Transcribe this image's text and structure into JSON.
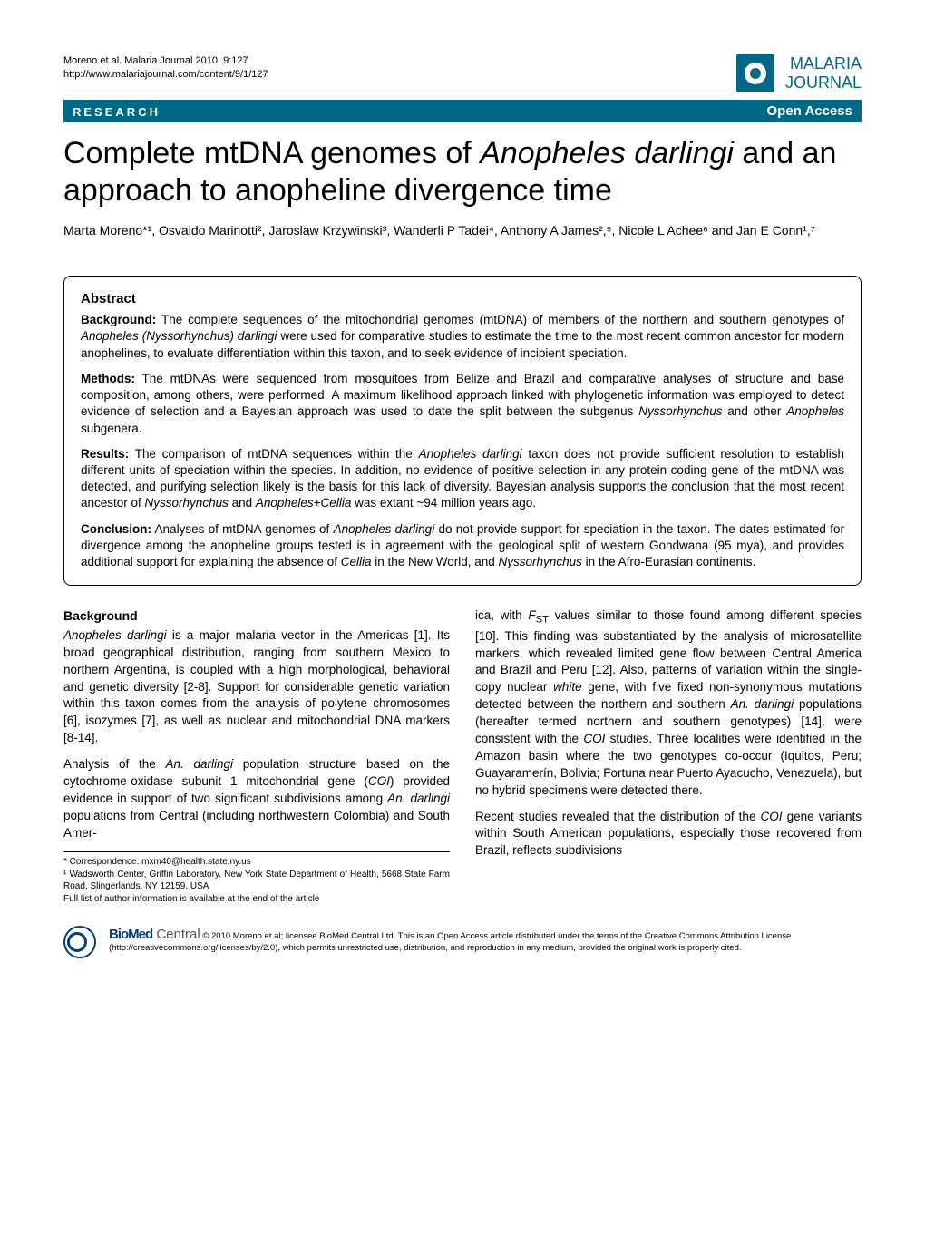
{
  "header": {
    "citation": "Moreno et al. Malaria Journal 2010, 9:127",
    "url": "http://www.malariajournal.com/content/9/1/127",
    "logo_line1": "MALARIA",
    "logo_line2": "JOURNAL"
  },
  "banner": {
    "left": "RESEARCH",
    "right": "Open Access"
  },
  "title": {
    "part1": "Complete mtDNA genomes of ",
    "italic": "Anopheles darlingi",
    "part2": " and an approach to anopheline divergence time"
  },
  "authors": "Marta Moreno*¹, Osvaldo Marinotti², Jaroslaw Krzywinski³, Wanderli P Tadei⁴, Anthony A James²,⁵, Nicole L Achee⁶ and Jan E Conn¹,⁷",
  "abstract": {
    "title": "Abstract",
    "background_label": "Background:",
    "background": " The complete sequences of the mitochondrial genomes (mtDNA) of members of the northern and southern genotypes of Anopheles (Nyssorhynchus) darlingi were used for comparative studies to estimate the time to the most recent common ancestor for modern anophelines, to evaluate differentiation within this taxon, and to seek evidence of incipient speciation.",
    "methods_label": "Methods:",
    "methods": " The mtDNAs were sequenced from mosquitoes from Belize and Brazil and comparative analyses of structure and base composition, among others, were performed. A maximum likelihood approach linked with phylogenetic information was employed to detect evidence of selection and a Bayesian approach was used to date the split between the subgenus Nyssorhynchus and other Anopheles subgenera.",
    "results_label": "Results:",
    "results": " The comparison of mtDNA sequences within the Anopheles darlingi taxon does not provide sufficient resolution to establish different units of speciation within the species. In addition, no evidence of positive selection in any protein-coding gene of the mtDNA was detected, and purifying selection likely is the basis for this lack of diversity. Bayesian analysis supports the conclusion that the most recent ancestor of Nyssorhynchus and Anopheles+Cellia was extant ~94 million years ago.",
    "conclusion_label": "Conclusion:",
    "conclusion": " Analyses of mtDNA genomes of Anopheles darlingi do not provide support for speciation in the taxon. The dates estimated for divergence among the anopheline groups tested is in agreement with the geological split of western Gondwana (95 mya), and provides additional support for explaining the absence of Cellia in the New World, and Nyssorhynchus in the Afro-Eurasian continents."
  },
  "body": {
    "heading": "Background",
    "left_p1": "Anopheles darlingi is a major malaria vector in the Americas [1]. Its broad geographical distribution, ranging from southern Mexico to northern Argentina, is coupled with a high morphological, behavioral and genetic diversity [2-8]. Support for considerable genetic variation within this taxon comes from the analysis of polytene chromosomes [6], isozymes [7], as well as nuclear and mitochondrial DNA markers [8-14].",
    "left_p2": "Analysis of the An. darlingi population structure based on the cytochrome-oxidase subunit 1 mitochondrial gene (COI) provided evidence in support of two significant subdivisions among An. darlingi populations from Central (including northwestern Colombia) and South Amer-",
    "right_p1": "ica, with FST values similar to those found among different species [10]. This finding was substantiated by the analysis of microsatellite markers, which revealed limited gene flow between Central America and Brazil and Peru [12]. Also, patterns of variation within the single-copy nuclear white gene, with five fixed non-synonymous mutations detected between the northern and southern An. darlingi populations (hereafter termed northern and southern genotypes) [14], were consistent with the COI studies. Three localities were identified in the Amazon basin where the two genotypes co-occur (Iquitos, Peru; Guayaramerín, Bolivia; Fortuna near Puerto Ayacucho, Venezuela), but no hybrid specimens were detected there.",
    "right_p2": "Recent studies revealed that the distribution of the COI gene variants within South American populations, especially those recovered from Brazil, reflects subdivisions"
  },
  "footnotes": {
    "correspondence": "* Correspondence: mxm40@health.state.ny.us",
    "affiliation": "¹ Wadsworth Center, Griffin Laboratory, New York State Department of Health, 5668 State Farm Road, Slingerlands, NY 12159, USA",
    "full_list": "Full list of author information is available at the end of the article"
  },
  "footer": {
    "license": "© 2010 Moreno et al; licensee BioMed Central Ltd. This is an Open Access article distributed under the terms of the Creative Commons Attribution License (http://creativecommons.org/licenses/by/2.0), which permits unrestricted use, distribution, and reproduction in any medium, provided the original work is properly cited.",
    "biomed": "BioMed",
    "central": " Central"
  },
  "colors": {
    "brand_blue": "#006887",
    "biomed_blue": "#003e80",
    "text": "#000000",
    "background": "#ffffff"
  },
  "fonts": {
    "title_size_pt": 26,
    "body_size_pt": 10,
    "abstract_size_pt": 10
  }
}
